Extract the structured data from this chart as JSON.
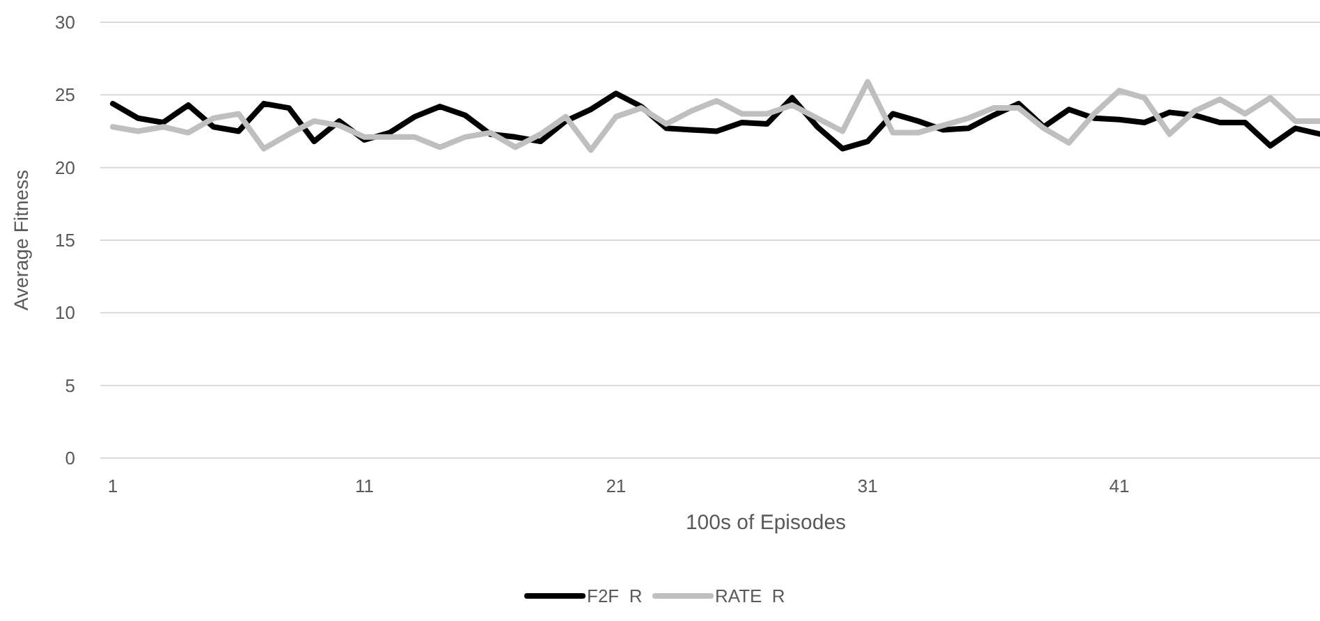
{
  "chart_data": {
    "type": "line",
    "xlabel": "100s of Episodes",
    "ylabel": "Average Fitness",
    "categories": [
      "1",
      null,
      null,
      null,
      null,
      null,
      null,
      null,
      null,
      null,
      "11",
      null,
      null,
      null,
      null,
      null,
      null,
      null,
      null,
      null,
      "21",
      null,
      null,
      null,
      null,
      null,
      null,
      null,
      null,
      null,
      "31",
      null,
      null,
      null,
      null,
      null,
      null,
      null,
      null,
      null,
      "41",
      null,
      null,
      null,
      null,
      null,
      null,
      null,
      null
    ],
    "series": [
      {
        "name": "F2F  R",
        "color": "#000000",
        "values": [
          24.4,
          23.4,
          23.1,
          24.3,
          22.8,
          22.5,
          24.4,
          24.1,
          21.8,
          23.2,
          21.9,
          22.4,
          23.5,
          24.2,
          23.6,
          22.3,
          22.1,
          21.8,
          23.2,
          24.0,
          25.1,
          24.2,
          22.7,
          22.6,
          22.5,
          23.1,
          23.0,
          24.8,
          22.8,
          21.3,
          21.8,
          23.7,
          23.2,
          22.6,
          22.7,
          23.6,
          24.4,
          22.8,
          24.0,
          23.4,
          23.3,
          23.1,
          23.8,
          23.6,
          23.1,
          23.1,
          21.5,
          22.7,
          22.3
        ]
      },
      {
        "name": "RATE  R",
        "color": "#bfbfbf",
        "values": [
          22.8,
          22.5,
          22.8,
          22.4,
          23.4,
          23.7,
          21.3,
          22.3,
          23.2,
          22.9,
          22.1,
          22.1,
          22.1,
          21.4,
          22.1,
          22.4,
          21.4,
          22.3,
          23.5,
          21.2,
          23.5,
          24.1,
          23.0,
          23.9,
          24.6,
          23.7,
          23.7,
          24.3,
          23.4,
          22.5,
          25.9,
          22.4,
          22.4,
          22.9,
          23.4,
          24.1,
          24.1,
          22.7,
          21.7,
          23.7,
          25.3,
          24.8,
          22.3,
          23.9,
          24.7,
          23.7,
          24.8,
          23.2,
          23.2
        ]
      }
    ],
    "ylim": [
      0,
      30
    ],
    "yticks": [
      0,
      5,
      10,
      15,
      20,
      25,
      30
    ],
    "grid": "y",
    "legend": "bottom",
    "marker": "none",
    "line_style": "solid"
  }
}
